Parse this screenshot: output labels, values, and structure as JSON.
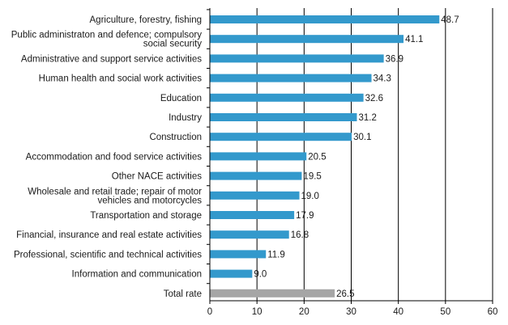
{
  "chart_data": {
    "type": "bar",
    "orientation": "horizontal",
    "title": "",
    "xlabel": "",
    "ylabel": "",
    "xlim": [
      0,
      60
    ],
    "ticks": [
      "0",
      "10",
      "20",
      "30",
      "40",
      "50",
      "60"
    ],
    "grid": "vertical",
    "colors": {
      "bar": "#3399cc",
      "total_bar": "#a6a6a6",
      "grid": "#000000"
    },
    "categories": [
      [
        "Agriculture, forestry, fishing"
      ],
      [
        "Public administraton and defence; compulsory",
        "social security"
      ],
      [
        "Administrative and support service activities"
      ],
      [
        "Human health and social work activities"
      ],
      [
        "Education"
      ],
      [
        "Industry"
      ],
      [
        "Construction"
      ],
      [
        "Accommodation and food service activities"
      ],
      [
        "Other NACE activities"
      ],
      [
        "Wholesale and retail trade; repair of motor",
        "vehicles and motorcycles"
      ],
      [
        "Transportation and storage"
      ],
      [
        "Financial, insurance and real estate activities"
      ],
      [
        "Professional, scientific and technical activities"
      ],
      [
        "Information and communication"
      ],
      [
        "Total rate"
      ]
    ],
    "values": [
      48.7,
      41.1,
      36.9,
      34.3,
      32.6,
      31.2,
      30.1,
      20.5,
      19.5,
      19.0,
      17.9,
      16.8,
      11.9,
      9.0,
      26.5
    ],
    "value_labels": [
      "48.7",
      "41.1",
      "36.9",
      "34.3",
      "32.6",
      "31.2",
      "30.1",
      "20.5",
      "19.5",
      "19.0",
      "17.9",
      "16.8",
      "11.9",
      "9.0",
      "26.5"
    ],
    "highlight_index": 14
  }
}
